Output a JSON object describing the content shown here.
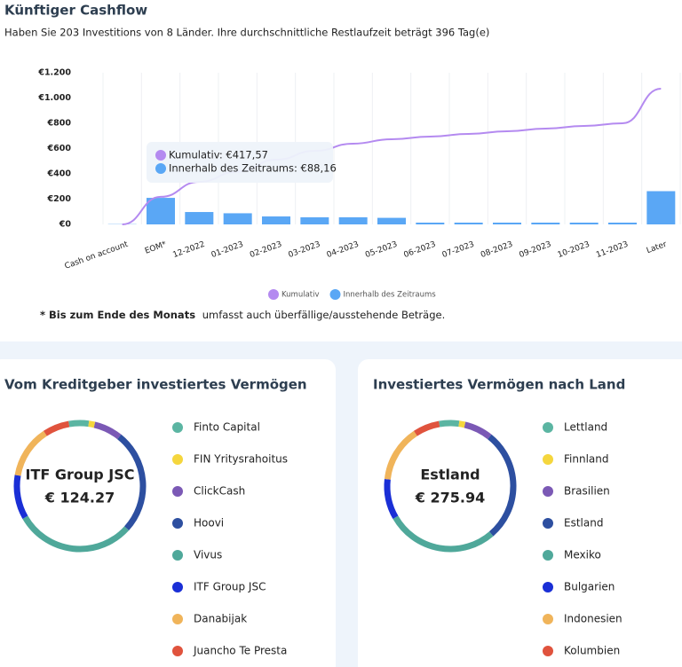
{
  "chart_data": [
    {
      "type": "combo",
      "title": "Künftiger Cashflow",
      "subtitle": "Haben Sie 203 Investitions von 8 Länder. Ihre durchschnittliche Restlaufzeit beträgt 396 Tag(e)",
      "categories": [
        "Cash on account",
        "EOM*",
        "12-2022",
        "01-2023",
        "02-2023",
        "03-2023",
        "04-2023",
        "05-2023",
        "06-2023",
        "07-2023",
        "08-2023",
        "09-2023",
        "10-2023",
        "11-2023",
        "Later"
      ],
      "series": [
        {
          "name": "Kumulativ",
          "type": "line",
          "color": "#b48af0",
          "values": [
            0,
            218,
            337,
            417.57,
            512,
            582,
            639,
            674,
            695,
            716,
            737,
            758,
            779,
            800,
            1074
          ]
        },
        {
          "name": "Innerhalb des Zeitraums",
          "type": "bar",
          "color": "#5aa7f5",
          "values": [
            2,
            210,
            98,
            88.16,
            63,
            56,
            56,
            52,
            14,
            14,
            14,
            14,
            14,
            14,
            263
          ]
        }
      ],
      "ylim": [
        0,
        1200
      ],
      "yticks": [
        {
          "value": 0,
          "label": "€0"
        },
        {
          "value": 200,
          "label": "€200"
        },
        {
          "value": 400,
          "label": "€400"
        },
        {
          "value": 600,
          "label": "€600"
        },
        {
          "value": 800,
          "label": "€800"
        },
        {
          "value": 1000,
          "label": "€1.000"
        },
        {
          "value": 1200,
          "label": "€1.200"
        }
      ],
      "tooltip": {
        "line": "Kumulativ: €417,57",
        "bar": "Innerhalb des Zeitraums: €88,16"
      },
      "footnote": {
        "bold": "* Bis zum Ende des Monats",
        "text": "umfasst auch überfällige/ausstehende Beträge."
      }
    },
    {
      "type": "donut",
      "title": "Vom Kreditgeber investiertes Vermögen",
      "center_title": "ITF Group JSC",
      "center_value": "€ 124.27",
      "categories": [
        "Finto Capital",
        "FIN Yritysrahoitus",
        "ClickCash",
        "Hoovi",
        "Vivus",
        "ITF Group JSC",
        "Danabijak",
        "Juancho Te Presta"
      ],
      "colors": [
        "#5bb5a2",
        "#f5d63d",
        "#7b59b5",
        "#2d4fa0",
        "#4fa89a",
        "#1a2fd6",
        "#f0b45a",
        "#e0533d"
      ],
      "values": [
        5,
        1.5,
        7,
        26,
        30,
        11,
        13,
        6.5
      ]
    },
    {
      "type": "donut",
      "title": "Investiertes Vermögen nach Land",
      "center_title": "Estland",
      "center_value": "€ 275.94",
      "categories": [
        "Lettland",
        "Finnland",
        "Brasilien",
        "Estland",
        "Mexiko",
        "Bulgarien",
        "Indonesien",
        "Kolumbien"
      ],
      "colors": [
        "#5bb5a2",
        "#f5d63d",
        "#7b59b5",
        "#2d4fa0",
        "#4fa89a",
        "#1a2fd6",
        "#f0b45a",
        "#e0533d"
      ],
      "values": [
        5,
        1.5,
        7,
        28,
        28,
        10,
        14,
        6.5
      ]
    }
  ]
}
